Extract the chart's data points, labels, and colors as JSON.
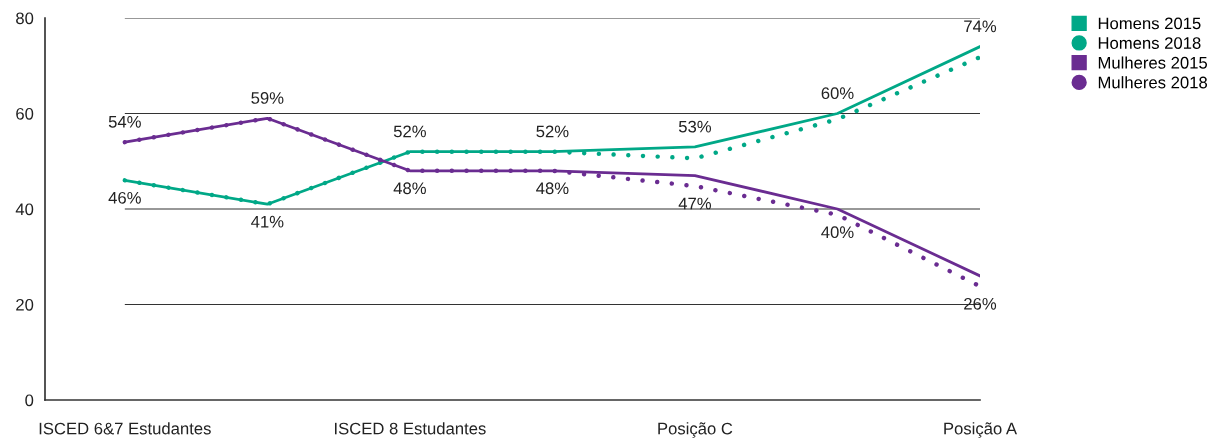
{
  "chart_data": {
    "type": "line",
    "categories": [
      "ISCED 6&7 Estudantes",
      null,
      "ISCED 8 Estudantes",
      null,
      "Posição C",
      null,
      "Posição A"
    ],
    "series": [
      {
        "name": "Homens 2015",
        "color": "#00a887",
        "line_style": "solid",
        "values": [
          46,
          41,
          52,
          52,
          53,
          60,
          74
        ],
        "value_labels": [
          "46%",
          "41%",
          "52%",
          "52%",
          "53%",
          "60%",
          "74%"
        ]
      },
      {
        "name": "Homens 2018",
        "color": "#00a887",
        "line_style": "dotted",
        "values": [
          46,
          41,
          52,
          52,
          50.6,
          58.8,
          71.8
        ]
      },
      {
        "name": "Mulheres 2015",
        "color": "#6a2c91",
        "line_style": "solid",
        "values": [
          54,
          59,
          48,
          48,
          47,
          40,
          26
        ],
        "value_labels": [
          "54%",
          "59%",
          "48%",
          "48%",
          "47%",
          "40%",
          "26%"
        ]
      },
      {
        "name": "Mulheres 2018",
        "color": "#6a2c91",
        "line_style": "dotted",
        "values": [
          54,
          59,
          48,
          48,
          44.8,
          38.8,
          23.8
        ]
      }
    ],
    "ylim": [
      0,
      80
    ],
    "yticks": [
      0,
      20,
      40,
      60,
      80
    ],
    "grid": "y",
    "legend": "top right"
  }
}
